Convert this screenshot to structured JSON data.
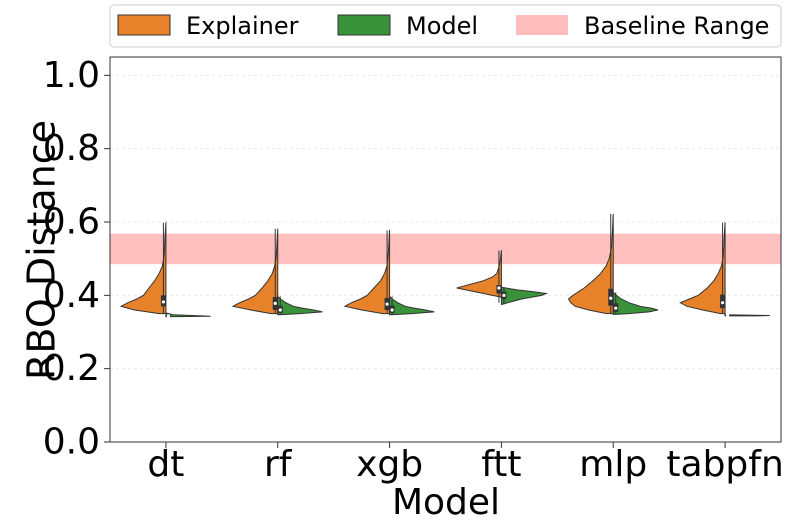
{
  "chart_data": {
    "type": "split-violin",
    "title": "",
    "xlabel": "Model",
    "ylabel": "RBO Distance",
    "ylim": [
      0.0,
      1.05
    ],
    "yticks": [
      0.0,
      0.2,
      0.4,
      0.6,
      0.8,
      1.0
    ],
    "ytick_labels": [
      "0.0",
      "0.2",
      "0.4",
      "0.6",
      "0.8",
      "1.0"
    ],
    "categories": [
      "dt",
      "rf",
      "xgb",
      "ftt",
      "mlp",
      "tabpfn"
    ],
    "grid": true,
    "legend_position": "top",
    "legend": [
      {
        "key": "explainer",
        "label": "Explainer",
        "color": "#e8822a"
      },
      {
        "key": "model",
        "label": "Model",
        "color": "#3a923a"
      },
      {
        "key": "baseline",
        "label": "Baseline Range",
        "color": "#ffbcbc"
      }
    ],
    "baseline_range": [
      0.485,
      0.568
    ],
    "series": [
      {
        "name": "Explainer",
        "side": "left",
        "color": "#e8822a",
        "distributions": [
          {
            "category": "dt",
            "min": 0.35,
            "q1": 0.37,
            "median": 0.382,
            "q3": 0.4,
            "max": 0.598,
            "density": [
              [
                0.35,
                0.15
              ],
              [
                0.36,
                0.7
              ],
              [
                0.37,
                1.0
              ],
              [
                0.38,
                0.85
              ],
              [
                0.39,
                0.65
              ],
              [
                0.4,
                0.5
              ],
              [
                0.42,
                0.38
              ],
              [
                0.44,
                0.25
              ],
              [
                0.46,
                0.15
              ],
              [
                0.48,
                0.08
              ],
              [
                0.5,
                0.05
              ],
              [
                0.53,
                0.03
              ],
              [
                0.56,
                0.02
              ],
              [
                0.598,
                0.0
              ]
            ]
          },
          {
            "category": "rf",
            "min": 0.35,
            "q1": 0.36,
            "median": 0.378,
            "q3": 0.395,
            "max": 0.582,
            "density": [
              [
                0.35,
                0.15
              ],
              [
                0.36,
                0.6
              ],
              [
                0.37,
                1.0
              ],
              [
                0.38,
                0.85
              ],
              [
                0.39,
                0.65
              ],
              [
                0.4,
                0.5
              ],
              [
                0.42,
                0.35
              ],
              [
                0.44,
                0.22
              ],
              [
                0.46,
                0.12
              ],
              [
                0.48,
                0.07
              ],
              [
                0.5,
                0.04
              ],
              [
                0.53,
                0.02
              ],
              [
                0.582,
                0.0
              ]
            ]
          },
          {
            "category": "xgb",
            "min": 0.35,
            "q1": 0.36,
            "median": 0.376,
            "q3": 0.393,
            "max": 0.577,
            "density": [
              [
                0.35,
                0.15
              ],
              [
                0.36,
                0.62
              ],
              [
                0.37,
                1.0
              ],
              [
                0.38,
                0.85
              ],
              [
                0.39,
                0.65
              ],
              [
                0.4,
                0.5
              ],
              [
                0.42,
                0.35
              ],
              [
                0.44,
                0.2
              ],
              [
                0.46,
                0.11
              ],
              [
                0.48,
                0.06
              ],
              [
                0.5,
                0.04
              ],
              [
                0.53,
                0.02
              ],
              [
                0.577,
                0.0
              ]
            ]
          },
          {
            "category": "ftt",
            "min": 0.38,
            "q1": 0.405,
            "median": 0.42,
            "q3": 0.428,
            "max": 0.522,
            "density": [
              [
                0.395,
                0.0
              ],
              [
                0.4,
                0.2
              ],
              [
                0.41,
                0.6
              ],
              [
                0.42,
                1.0
              ],
              [
                0.43,
                0.7
              ],
              [
                0.44,
                0.4
              ],
              [
                0.45,
                0.2
              ],
              [
                0.46,
                0.1
              ],
              [
                0.48,
                0.05
              ],
              [
                0.5,
                0.02
              ],
              [
                0.522,
                0.0
              ]
            ]
          },
          {
            "category": "mlp",
            "min": 0.35,
            "q1": 0.372,
            "median": 0.392,
            "q3": 0.418,
            "max": 0.622,
            "density": [
              [
                0.35,
                0.15
              ],
              [
                0.36,
                0.55
              ],
              [
                0.37,
                0.85
              ],
              [
                0.38,
                0.95
              ],
              [
                0.39,
                1.0
              ],
              [
                0.4,
                0.9
              ],
              [
                0.42,
                0.65
              ],
              [
                0.44,
                0.45
              ],
              [
                0.46,
                0.28
              ],
              [
                0.48,
                0.16
              ],
              [
                0.5,
                0.09
              ],
              [
                0.53,
                0.04
              ],
              [
                0.57,
                0.02
              ],
              [
                0.622,
                0.0
              ]
            ]
          },
          {
            "category": "tabpfn",
            "min": 0.35,
            "q1": 0.365,
            "median": 0.38,
            "q3": 0.402,
            "max": 0.598,
            "density": [
              [
                0.35,
                0.1
              ],
              [
                0.36,
                0.5
              ],
              [
                0.37,
                0.85
              ],
              [
                0.38,
                1.0
              ],
              [
                0.39,
                0.8
              ],
              [
                0.4,
                0.6
              ],
              [
                0.42,
                0.4
              ],
              [
                0.44,
                0.25
              ],
              [
                0.46,
                0.15
              ],
              [
                0.48,
                0.08
              ],
              [
                0.5,
                0.05
              ],
              [
                0.53,
                0.03
              ],
              [
                0.56,
                0.02
              ],
              [
                0.598,
                0.0
              ]
            ]
          }
        ]
      },
      {
        "name": "Model",
        "side": "right",
        "color": "#3a923a",
        "distributions": [
          {
            "category": "dt",
            "min": 0.342,
            "q1": 0.343,
            "median": 0.344,
            "q3": 0.346,
            "max": 0.352,
            "density": [
              [
                0.342,
                0.25
              ],
              [
                0.343,
                1.0
              ],
              [
                0.345,
                0.6
              ],
              [
                0.347,
                0.15
              ],
              [
                0.352,
                0.0
              ]
            ]
          },
          {
            "category": "rf",
            "min": 0.347,
            "q1": 0.352,
            "median": 0.36,
            "q3": 0.372,
            "max": 0.397,
            "density": [
              [
                0.347,
                0.05
              ],
              [
                0.35,
                0.5
              ],
              [
                0.355,
                1.0
              ],
              [
                0.36,
                0.8
              ],
              [
                0.365,
                0.55
              ],
              [
                0.37,
                0.35
              ],
              [
                0.38,
                0.18
              ],
              [
                0.39,
                0.06
              ],
              [
                0.397,
                0.0
              ]
            ]
          },
          {
            "category": "xgb",
            "min": 0.347,
            "q1": 0.352,
            "median": 0.36,
            "q3": 0.372,
            "max": 0.397,
            "density": [
              [
                0.347,
                0.05
              ],
              [
                0.35,
                0.5
              ],
              [
                0.355,
                1.0
              ],
              [
                0.36,
                0.8
              ],
              [
                0.365,
                0.55
              ],
              [
                0.37,
                0.35
              ],
              [
                0.38,
                0.18
              ],
              [
                0.39,
                0.06
              ],
              [
                0.397,
                0.0
              ]
            ]
          },
          {
            "category": "ftt",
            "min": 0.375,
            "q1": 0.39,
            "median": 0.4,
            "q3": 0.41,
            "max": 0.422,
            "density": [
              [
                0.375,
                0.0
              ],
              [
                0.38,
                0.15
              ],
              [
                0.39,
                0.45
              ],
              [
                0.4,
                0.9
              ],
              [
                0.405,
                1.0
              ],
              [
                0.41,
                0.7
              ],
              [
                0.415,
                0.35
              ],
              [
                0.422,
                0.0
              ]
            ]
          },
          {
            "category": "mlp",
            "min": 0.348,
            "q1": 0.355,
            "median": 0.365,
            "q3": 0.378,
            "max": 0.408,
            "density": [
              [
                0.348,
                0.05
              ],
              [
                0.35,
                0.35
              ],
              [
                0.355,
                0.8
              ],
              [
                0.36,
                1.0
              ],
              [
                0.365,
                0.85
              ],
              [
                0.37,
                0.6
              ],
              [
                0.38,
                0.35
              ],
              [
                0.39,
                0.18
              ],
              [
                0.4,
                0.07
              ],
              [
                0.408,
                0.0
              ]
            ]
          },
          {
            "category": "tabpfn",
            "min": 0.344,
            "q1": 0.344,
            "median": 0.345,
            "q3": 0.346,
            "max": 0.347,
            "density": [
              [
                0.344,
                0.7
              ],
              [
                0.345,
                1.0
              ],
              [
                0.346,
                0.5
              ],
              [
                0.347,
                0.0
              ]
            ]
          }
        ]
      }
    ]
  }
}
